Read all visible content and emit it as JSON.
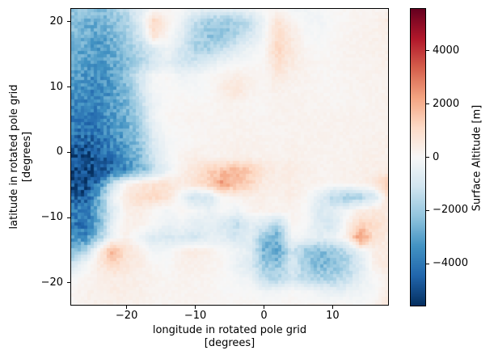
{
  "figure": {
    "background": "#ffffff",
    "frame_color": "#000000"
  },
  "axes": {
    "xlabel": "longitude in rotated pole grid\n[degrees]",
    "ylabel": "latitude in rotated pole grid\n[degrees]",
    "xlim": [
      -28.2,
      18.2
    ],
    "ylim": [
      -23.5,
      22.1
    ],
    "x_ticks": [
      {
        "value": -20,
        "label": "−20"
      },
      {
        "value": -10,
        "label": "−10"
      },
      {
        "value": 0,
        "label": "0"
      },
      {
        "value": 10,
        "label": "10"
      }
    ],
    "y_ticks": [
      {
        "value": 20,
        "label": "20"
      },
      {
        "value": 10,
        "label": "10"
      },
      {
        "value": 0,
        "label": "0"
      },
      {
        "value": -10,
        "label": "−10"
      },
      {
        "value": -20,
        "label": "−20"
      }
    ]
  },
  "colorbar": {
    "label": "Surface Altitude [m]",
    "vmin": -5600,
    "vmax": 5600,
    "ticks": [
      {
        "value": 4000,
        "label": "4000"
      },
      {
        "value": 2000,
        "label": "2000"
      },
      {
        "value": 0,
        "label": "0"
      },
      {
        "value": -2000,
        "label": "−2000"
      },
      {
        "value": -4000,
        "label": "−4000"
      }
    ],
    "cmap_stops": [
      [
        0.0,
        "#053061"
      ],
      [
        0.1,
        "#2166ac"
      ],
      [
        0.2,
        "#4393c3"
      ],
      [
        0.3,
        "#92c5de"
      ],
      [
        0.4,
        "#d1e5f0"
      ],
      [
        0.5,
        "#f7f7f7"
      ],
      [
        0.6,
        "#fddbc7"
      ],
      [
        0.7,
        "#f4a582"
      ],
      [
        0.8,
        "#d6604d"
      ],
      [
        0.9,
        "#b2182b"
      ],
      [
        1.0,
        "#67001f"
      ]
    ]
  },
  "chart_data": {
    "type": "heatmap",
    "title": "",
    "xlabel": "longitude in rotated pole grid [degrees]",
    "ylabel": "latitude in rotated pole grid [degrees]",
    "value_label": "Surface Altitude [m]",
    "colormap": "RdBu_r",
    "vmin": -5600,
    "vmax": 5600,
    "x_range": [
      -28.2,
      18.2
    ],
    "y_range": [
      -23.5,
      22.1
    ],
    "grid_lon_centers": [
      -27.23,
      -25.3,
      -23.37,
      -21.43,
      -19.5,
      -17.57,
      -15.63,
      -13.7,
      -11.77,
      -9.83,
      -7.9,
      -5.97,
      -4.03,
      -2.1,
      -0.17,
      1.77,
      3.7,
      5.63,
      7.57,
      9.5,
      11.43,
      13.37,
      15.3,
      17.23
    ],
    "grid_lat_centers": [
      21.11,
      19.13,
      17.14,
      15.16,
      13.18,
      11.2,
      9.21,
      7.23,
      5.25,
      3.26,
      1.28,
      -0.7,
      -2.68,
      -4.67,
      -6.65,
      -8.63,
      -10.61,
      -12.6,
      -14.58,
      -16.56,
      -18.55,
      -20.53,
      -22.51
    ],
    "values": [
      [
        -2000,
        -2200,
        -2400,
        -2000,
        -1400,
        -600,
        0,
        100,
        0,
        -300,
        -600,
        -500,
        -400,
        -200,
        0,
        100,
        -200,
        -200,
        -100,
        0,
        100,
        150,
        150,
        200
      ],
      [
        -2200,
        -2600,
        -2800,
        -2400,
        -1800,
        -700,
        1200,
        300,
        -400,
        -1400,
        -2000,
        -2200,
        -2000,
        -1400,
        -300,
        800,
        300,
        -100,
        -200,
        0,
        100,
        200,
        200,
        500
      ],
      [
        -2400,
        -2800,
        -3000,
        -2600,
        -2000,
        -1000,
        800,
        100,
        -600,
        -1600,
        -2200,
        -2100,
        -1700,
        -900,
        -100,
        1000,
        500,
        0,
        -100,
        100,
        150,
        200,
        250,
        300
      ],
      [
        -2600,
        -3000,
        -3100,
        -2800,
        -2200,
        -1600,
        -800,
        -300,
        -1000,
        -1800,
        -1900,
        -1300,
        -700,
        -300,
        0,
        1200,
        600,
        100,
        0,
        100,
        200,
        200,
        300,
        300
      ],
      [
        -2800,
        -3100,
        -3300,
        -2900,
        -2400,
        -1800,
        -1000,
        -500,
        -1100,
        -1000,
        -600,
        -300,
        -100,
        0,
        100,
        900,
        500,
        200,
        100,
        100,
        200,
        200,
        200,
        300
      ],
      [
        -3000,
        -3300,
        -3500,
        -3000,
        -2200,
        -1000,
        -100,
        100,
        -300,
        -100,
        0,
        300,
        400,
        200,
        100,
        600,
        300,
        200,
        100,
        100,
        150,
        200,
        200,
        250
      ],
      [
        -3200,
        -3500,
        -3700,
        -3200,
        -2400,
        -1200,
        -100,
        0,
        0,
        -100,
        0,
        400,
        700,
        300,
        100,
        300,
        200,
        150,
        100,
        100,
        150,
        150,
        200,
        200
      ],
      [
        -3400,
        -3700,
        -3600,
        -3100,
        -2600,
        -1400,
        -300,
        0,
        100,
        100,
        100,
        200,
        200,
        100,
        100,
        200,
        200,
        200,
        150,
        150,
        150,
        150,
        200,
        200
      ],
      [
        -3700,
        -3900,
        -3700,
        -3200,
        -2700,
        -1700,
        -300,
        100,
        100,
        150,
        150,
        150,
        200,
        150,
        150,
        200,
        200,
        200,
        200,
        200,
        200,
        200,
        200,
        200
      ],
      [
        -3900,
        -4100,
        -3900,
        -3400,
        -2900,
        -2000,
        -500,
        0,
        100,
        100,
        150,
        150,
        200,
        200,
        150,
        150,
        200,
        200,
        200,
        200,
        200,
        200,
        200,
        250
      ],
      [
        -4400,
        -4600,
        -4200,
        -3600,
        -3000,
        -2200,
        -800,
        -100,
        0,
        100,
        150,
        200,
        250,
        250,
        200,
        150,
        250,
        200,
        200,
        200,
        200,
        250,
        300,
        300
      ],
      [
        -4800,
        -5000,
        -4600,
        -4000,
        -3200,
        -2400,
        -1000,
        -200,
        200,
        400,
        200,
        250,
        300,
        300,
        250,
        200,
        300,
        250,
        200,
        200,
        200,
        250,
        300,
        350
      ],
      [
        -5100,
        -5300,
        -4900,
        -4300,
        -3500,
        -2700,
        -1400,
        -400,
        300,
        600,
        1200,
        1600,
        1800,
        1400,
        700,
        400,
        500,
        300,
        200,
        200,
        250,
        300,
        350,
        400
      ],
      [
        -4900,
        -5100,
        -3800,
        -1200,
        200,
        600,
        800,
        800,
        500,
        800,
        1400,
        2400,
        1800,
        1200,
        500,
        350,
        400,
        250,
        200,
        150,
        200,
        300,
        600,
        1500
      ],
      [
        -4500,
        -4700,
        -2800,
        -300,
        500,
        1000,
        1100,
        800,
        -300,
        -1200,
        -1000,
        100,
        200,
        300,
        300,
        200,
        400,
        100,
        -600,
        -1600,
        -1900,
        -1700,
        -1000,
        800
      ],
      [
        -3600,
        -4000,
        -2600,
        -800,
        300,
        400,
        100,
        -200,
        100,
        -100,
        -400,
        0,
        -300,
        200,
        300,
        200,
        200,
        0,
        -800,
        -600,
        -200,
        400,
        600,
        500
      ],
      [
        -3800,
        -4200,
        -2600,
        -400,
        300,
        300,
        0,
        -400,
        -200,
        -600,
        -500,
        -800,
        -1400,
        -600,
        -800,
        -1600,
        100,
        0,
        -800,
        -1000,
        200,
        1200,
        1000,
        600
      ],
      [
        -3400,
        -3600,
        -2000,
        -200,
        300,
        -300,
        -800,
        -900,
        -800,
        -1000,
        -600,
        -600,
        -1000,
        -600,
        -2200,
        -2800,
        -100,
        -300,
        -600,
        -400,
        300,
        2600,
        700,
        500
      ],
      [
        -2600,
        -1600,
        200,
        2000,
        800,
        400,
        -200,
        -100,
        300,
        500,
        300,
        0,
        -200,
        -600,
        -2600,
        -3000,
        -1200,
        -2000,
        -2400,
        -2200,
        -1400,
        -400,
        400,
        500
      ],
      [
        -1000,
        -200,
        500,
        1200,
        700,
        400,
        100,
        0,
        300,
        300,
        200,
        100,
        -400,
        -800,
        -2000,
        -2200,
        -800,
        -2000,
        -2600,
        -2400,
        -1800,
        -800,
        300,
        600
      ],
      [
        -100,
        100,
        300,
        400,
        400,
        300,
        200,
        100,
        200,
        200,
        150,
        50,
        -100,
        -300,
        -1600,
        -1800,
        -1000,
        -1500,
        -1800,
        -1800,
        -1400,
        -500,
        0,
        300
      ],
      [
        100,
        250,
        350,
        400,
        350,
        300,
        200,
        150,
        150,
        150,
        150,
        0,
        0,
        0,
        -200,
        -200,
        0,
        -100,
        -300,
        -500,
        -400,
        -200,
        -100,
        400
      ],
      [
        100,
        200,
        250,
        300,
        250,
        200,
        150,
        150,
        150,
        200,
        150,
        150,
        100,
        100,
        100,
        100,
        100,
        100,
        100,
        100,
        100,
        -100,
        200,
        600
      ]
    ]
  }
}
